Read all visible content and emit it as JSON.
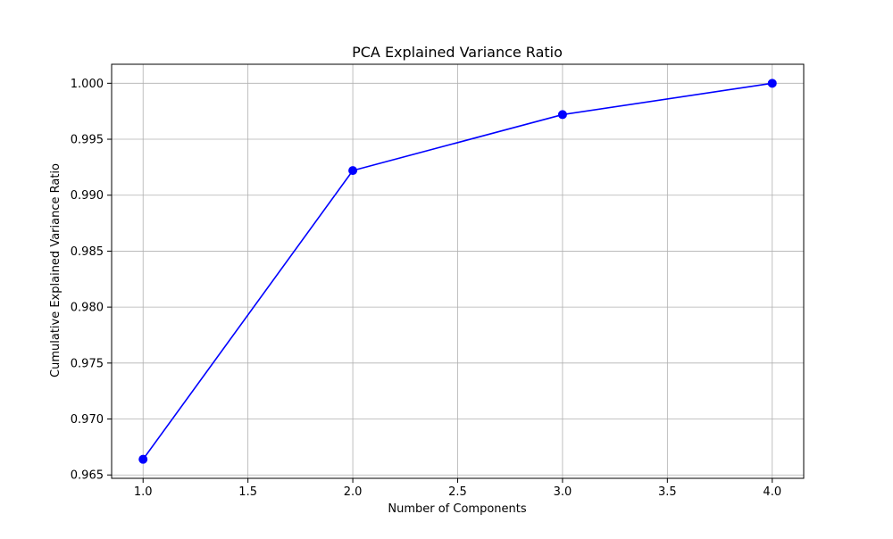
{
  "chart_data": {
    "type": "line",
    "title": "PCA Explained Variance Ratio",
    "xlabel": "Number of Components",
    "ylabel": "Cumulative Explained Variance Ratio",
    "x": [
      1,
      2,
      3,
      4
    ],
    "series": [
      {
        "values": [
          0.9664,
          0.9922,
          0.9972,
          1.0
        ],
        "color": "#0000ff",
        "marker": "circle"
      }
    ],
    "xlim": [
      0.85,
      4.15
    ],
    "ylim": [
      0.9647,
      1.0017
    ],
    "xticks": [
      1.0,
      1.5,
      2.0,
      2.5,
      3.0,
      3.5,
      4.0
    ],
    "xtick_labels": [
      "1.0",
      "1.5",
      "2.0",
      "2.5",
      "3.0",
      "3.5",
      "4.0"
    ],
    "yticks": [
      0.965,
      0.97,
      0.975,
      0.98,
      0.985,
      0.99,
      0.995,
      1.0
    ],
    "ytick_labels": [
      "0.965",
      "0.970",
      "0.975",
      "0.980",
      "0.985",
      "0.990",
      "0.995",
      "1.000"
    ],
    "grid": true,
    "grid_color": "#b0b0b0",
    "axis_color": "#000000"
  }
}
